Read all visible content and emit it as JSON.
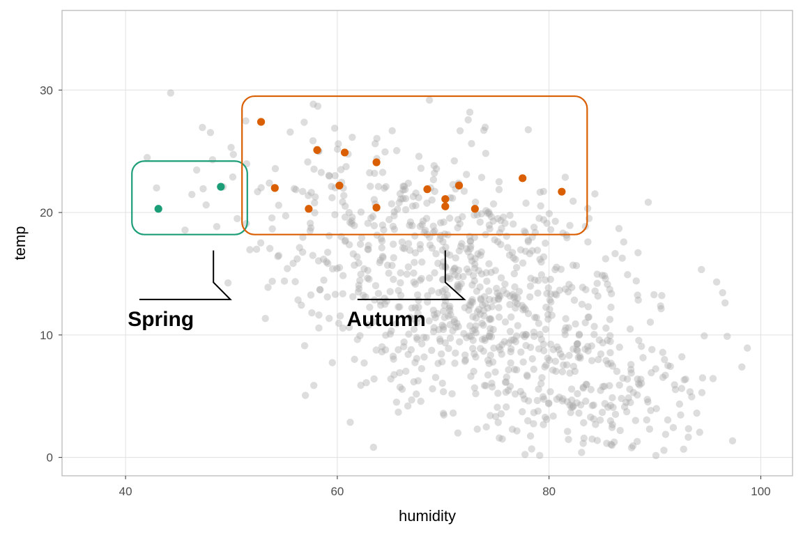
{
  "chart_data": {
    "type": "scatter",
    "xlabel": "humidity",
    "ylabel": "temp",
    "xlim": [
      34,
      103
    ],
    "ylim": [
      -1.5,
      36.5
    ],
    "x_ticks": [
      40,
      60,
      80,
      100
    ],
    "y_ticks": [
      0,
      10,
      20,
      30
    ],
    "x_tick_labels": [
      "40",
      "60",
      "80",
      "100"
    ],
    "y_tick_labels": [
      "0",
      "10",
      "20",
      "30"
    ],
    "grid": true,
    "colors": {
      "background_points": "#a6a6a6",
      "spring": "#1b9e77",
      "autumn": "#d95f02",
      "grid": "#e0e0e0",
      "panel_border": "#b3b3b3"
    },
    "series": [
      {
        "name": "Spring",
        "color": "#1b9e77",
        "points": [
          [
            43.1,
            20.3
          ],
          [
            49.0,
            22.1
          ]
        ]
      },
      {
        "name": "Autumn",
        "color": "#d95f02",
        "points": [
          [
            52.8,
            27.4
          ],
          [
            58.1,
            25.1
          ],
          [
            60.7,
            24.9
          ],
          [
            63.7,
            24.1
          ],
          [
            54.1,
            22.0
          ],
          [
            60.2,
            22.2
          ],
          [
            68.5,
            21.9
          ],
          [
            71.5,
            22.2
          ],
          [
            77.5,
            22.8
          ],
          [
            81.2,
            21.7
          ],
          [
            57.3,
            20.3
          ],
          [
            63.7,
            20.4
          ],
          [
            70.2,
            21.1
          ],
          [
            70.2,
            20.5
          ],
          [
            73.0,
            20.3
          ]
        ]
      }
    ],
    "annotations": [
      {
        "label": "Spring",
        "color": "#1b9e77",
        "box_x": [
          40.6,
          51.5
        ],
        "box_y": [
          18.2,
          24.2
        ],
        "pointer": [
          [
            48.3,
            16.9
          ],
          [
            48.3,
            14.3
          ],
          [
            49.9,
            12.9
          ],
          [
            41.3,
            12.9
          ]
        ],
        "label_pos": [
          48.3,
          11.3
        ]
      },
      {
        "label": "Autumn",
        "color": "#d95f02",
        "box_x": [
          51.0,
          83.6
        ],
        "box_y": [
          18.2,
          29.5
        ],
        "pointer": [
          [
            70.2,
            16.9
          ],
          [
            70.2,
            14.3
          ],
          [
            72.0,
            12.9
          ],
          [
            61.9,
            12.9
          ]
        ],
        "label_pos": [
          70.2,
          11.3
        ]
      }
    ]
  }
}
